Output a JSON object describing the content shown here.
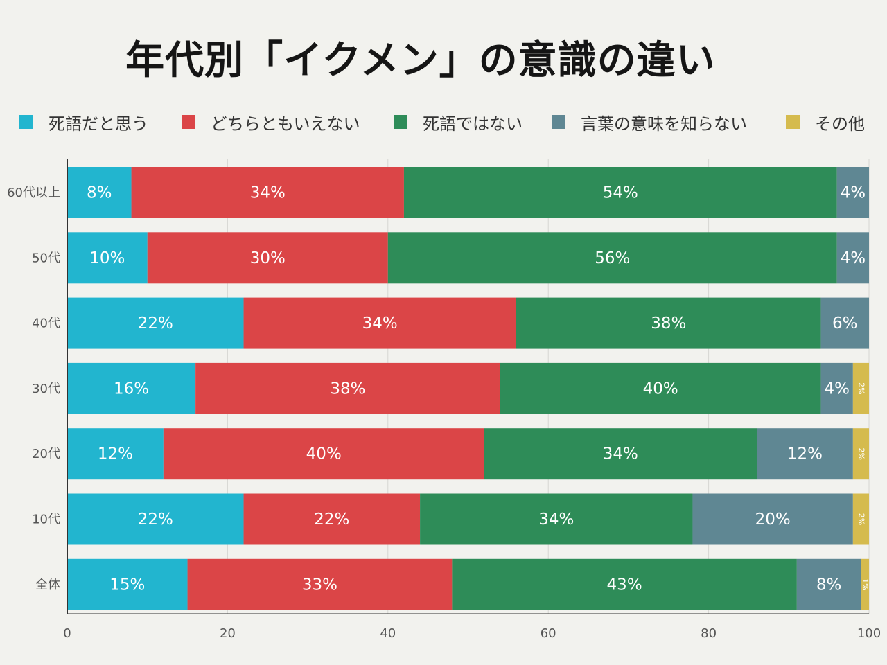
{
  "title": "年代別「イクメン」の意識の違い",
  "colors": {
    "死語だと思う": "#22b5cf",
    "どちらともいえない": "#db4547",
    "死語ではない": "#2e8c58",
    "言葉の意味を知らない": "#5f8793",
    "その他": "#d5bb4e"
  },
  "legend": [
    "死語だと思う",
    "どちらともいえない",
    "死語ではない",
    "言葉の意味を知らない",
    "その他"
  ],
  "chart_data": {
    "type": "bar",
    "orientation": "horizontal",
    "stacked": true,
    "title": "年代別「イクメン」の意識の違い",
    "categories": [
      "60代以上",
      "50代",
      "40代",
      "30代",
      "20代",
      "10代",
      "全体"
    ],
    "series": [
      {
        "name": "死語だと思う",
        "values": [
          8,
          10,
          22,
          16,
          12,
          22,
          15
        ],
        "labels": [
          "8%",
          "10%",
          "22%",
          "16%",
          "12%",
          "22%",
          "15%"
        ]
      },
      {
        "name": "どちらともいえない",
        "values": [
          34,
          30,
          34,
          38,
          40,
          22,
          33
        ],
        "labels": [
          "34%",
          "30%",
          "34%",
          "38%",
          "40%",
          "22%",
          "33%"
        ]
      },
      {
        "name": "死語ではない",
        "values": [
          54,
          56,
          38,
          40,
          34,
          34,
          43
        ],
        "labels": [
          "54%",
          "56%",
          "38%",
          "40%",
          "34%",
          "34%",
          "43%"
        ]
      },
      {
        "name": "言葉の意味を知らない",
        "values": [
          4,
          4,
          6,
          4,
          12,
          20,
          8
        ],
        "labels": [
          "4%",
          "4%",
          "6%",
          "4%",
          "12%",
          "20%",
          "8%"
        ]
      },
      {
        "name": "その他",
        "values": [
          0,
          0,
          0,
          2,
          2,
          2,
          1
        ],
        "labels": [
          "",
          "",
          "",
          "2%",
          "2%",
          "2%",
          "1%"
        ]
      }
    ],
    "xlim": [
      0,
      100
    ],
    "xticks": [
      "0",
      "20",
      "40",
      "60",
      "80",
      "100"
    ],
    "grid": true,
    "legend_position": "top"
  }
}
